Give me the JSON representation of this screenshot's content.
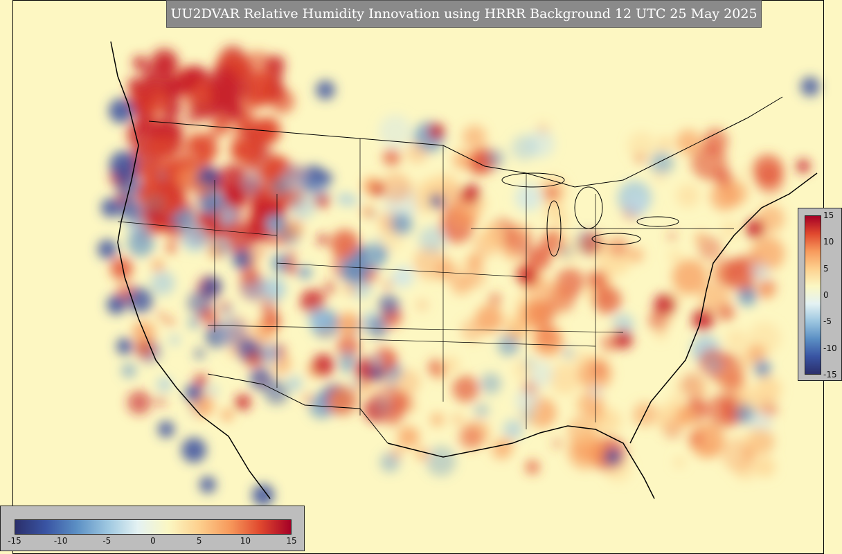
{
  "title": "UU2DVAR Relative Humidity Innovation using HRRR Background 12 UTC 25 May 2025",
  "colorbar": {
    "min": -15,
    "max": 15,
    "stops": [
      "#2b2f6b",
      "#3954a3",
      "#5b8fc4",
      "#9cc6e0",
      "#e4f2f3",
      "#fbf7c3",
      "#fdd08e",
      "#f79a5c",
      "#e0482e",
      "#a50026"
    ],
    "horizontal_ticks": [
      "-15",
      "-10",
      "-5",
      "0",
      "5",
      "10",
      "15"
    ],
    "vertical_ticks": [
      "15",
      "10",
      "5",
      "0",
      "-5",
      "-10",
      "-15"
    ]
  },
  "colors": {
    "background": "#fdf7c2",
    "positive": "#c8202a",
    "negative": "#3a4fa0",
    "outline": "#000000"
  }
}
